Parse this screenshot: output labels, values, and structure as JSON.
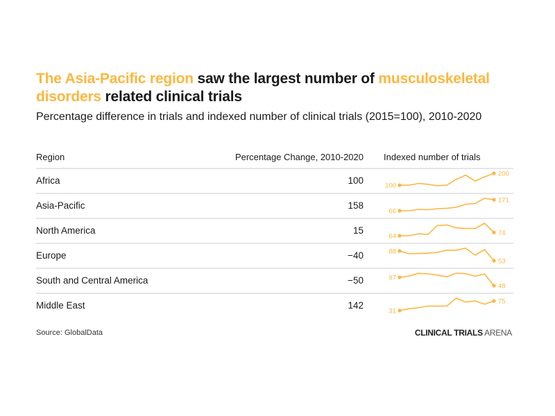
{
  "title": {
    "highlight1": "The Asia-Pacific region",
    "text1": " saw the largest number of ",
    "highlight2": "musculoskeletal disorders",
    "text2": " related clinical trials"
  },
  "subtitle": "Percentage difference in trials and indexed number of clinical trials (2015=100), 2010-2020",
  "columns": {
    "region": "Region",
    "pct": "Percentage Change, 2010-2020",
    "spark": "Indexed number of trials"
  },
  "colors": {
    "accent": "#fbb740",
    "divider": "#e6e6e6"
  },
  "footer": {
    "source": "Source: GlobalData",
    "brand_bold": "CLINICAL TRIALS",
    "brand_light": " ARENA"
  },
  "chart_data": {
    "type": "table",
    "title": "The Asia-Pacific region saw the largest number of musculoskeletal disorders related clinical trials",
    "subtitle": "Percentage difference in trials and indexed number of clinical trials (2015=100), 2010-2020",
    "x": [
      2010,
      2011,
      2012,
      2013,
      2014,
      2015,
      2016,
      2017,
      2018,
      2019,
      2020
    ],
    "rows": [
      {
        "region": "Africa",
        "pct_change": "100",
        "start_label": "100",
        "end_label": "200",
        "series": [
          100,
          100,
          115,
          108,
          95,
          100,
          150,
          185,
          135,
          170,
          200
        ]
      },
      {
        "region": "Asia-Pacific",
        "pct_change": "158",
        "start_label": "66",
        "end_label": "171",
        "series": [
          66,
          66,
          80,
          76,
          86,
          90,
          100,
          128,
          136,
          185,
          171
        ]
      },
      {
        "region": "North America",
        "pct_change": "15",
        "start_label": "64",
        "end_label": "74",
        "series": [
          64,
          64,
          70,
          68,
          95,
          97,
          88,
          86,
          86,
          102,
          74
        ]
      },
      {
        "region": "Europe",
        "pct_change": "−40",
        "start_label": "88",
        "end_label": "53",
        "series": [
          88,
          78,
          79,
          80,
          83,
          91,
          91,
          98,
          73,
          93,
          53
        ]
      },
      {
        "region": "South and Central America",
        "pct_change": "−50",
        "start_label": "97",
        "end_label": "48",
        "series": [
          97,
          104,
          120,
          117,
          110,
          100,
          121,
          118,
          103,
          116,
          48
        ]
      },
      {
        "region": "Middle East",
        "pct_change": "142",
        "start_label": "31",
        "end_label": "75",
        "series": [
          31,
          40,
          44,
          52,
          52,
          52,
          88,
          70,
          75,
          60,
          75
        ]
      }
    ]
  }
}
